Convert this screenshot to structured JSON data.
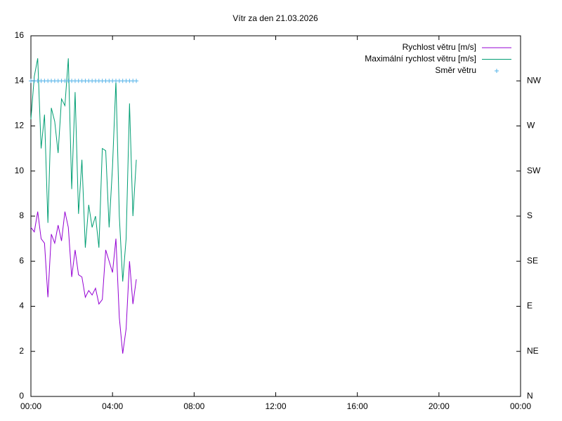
{
  "chart_data": {
    "type": "line",
    "title": "Vítr za den 21.03.2026",
    "x": [
      0,
      0.1667,
      0.3333,
      0.5,
      0.6667,
      0.8333,
      1,
      1.1667,
      1.3333,
      1.5,
      1.6667,
      1.8333,
      2,
      2.1667,
      2.3333,
      2.5,
      2.6667,
      2.8333,
      3,
      3.1667,
      3.3333,
      3.5,
      3.6667,
      3.8333,
      4,
      4.1667,
      4.3333,
      4.5,
      4.6667,
      4.8333,
      5,
      5.1667
    ],
    "xlim": [
      0,
      24
    ],
    "xticks": [
      {
        "value": 0,
        "label": "00:00"
      },
      {
        "value": 4,
        "label": "04:00"
      },
      {
        "value": 8,
        "label": "08:00"
      },
      {
        "value": 12,
        "label": "12:00"
      },
      {
        "value": 16,
        "label": "16:00"
      },
      {
        "value": 20,
        "label": "20:00"
      },
      {
        "value": 24,
        "label": "00:00"
      }
    ],
    "ylim": [
      0,
      16
    ],
    "yticks": [
      0,
      2,
      4,
      6,
      8,
      10,
      12,
      14,
      16
    ],
    "y2lim": [
      0,
      8
    ],
    "y2ticks": [
      {
        "value": 0,
        "label": "N"
      },
      {
        "value": 1,
        "label": "NE"
      },
      {
        "value": 2,
        "label": "E"
      },
      {
        "value": 3,
        "label": "SE"
      },
      {
        "value": 4,
        "label": "S"
      },
      {
        "value": 5,
        "label": "SW"
      },
      {
        "value": 6,
        "label": "W"
      },
      {
        "value": 7,
        "label": "NW"
      }
    ],
    "legend": "top-right",
    "series": [
      {
        "name": "Rychlost větru [m/s]",
        "color": "#9400d3",
        "values": [
          7.5,
          7.3,
          8.2,
          7.0,
          6.8,
          4.4,
          7.2,
          6.8,
          7.6,
          6.9,
          8.2,
          7.5,
          5.3,
          6.5,
          5.4,
          5.3,
          4.4,
          4.7,
          4.5,
          4.8,
          4.1,
          4.3,
          6.5,
          6.0,
          5.5,
          7.0,
          3.5,
          1.9,
          3.0,
          6.0,
          4.1,
          5.2
        ]
      },
      {
        "name": "Maximální rychlost větru [m/s]",
        "color": "#009e73",
        "values": [
          12.3,
          14.2,
          15.0,
          11.0,
          12.5,
          7.7,
          12.8,
          12.2,
          10.8,
          13.2,
          12.9,
          15.0,
          9.2,
          13.5,
          8.1,
          10.5,
          6.6,
          8.5,
          7.5,
          8.0,
          6.6,
          11.0,
          10.9,
          7.5,
          10.2,
          14.0,
          8.0,
          5.1,
          7.0,
          13.0,
          8.0,
          10.5
        ]
      },
      {
        "name": "Směr větru",
        "color": "#56b4e9",
        "axis": "y2",
        "marker": "+",
        "values": [
          7,
          7,
          7,
          7,
          7,
          7,
          7,
          7,
          7,
          7,
          7,
          7,
          7,
          7,
          7,
          7,
          7,
          7,
          7,
          7,
          7,
          7,
          7,
          7,
          7,
          7,
          7,
          7,
          7,
          7,
          7,
          7
        ]
      }
    ]
  }
}
